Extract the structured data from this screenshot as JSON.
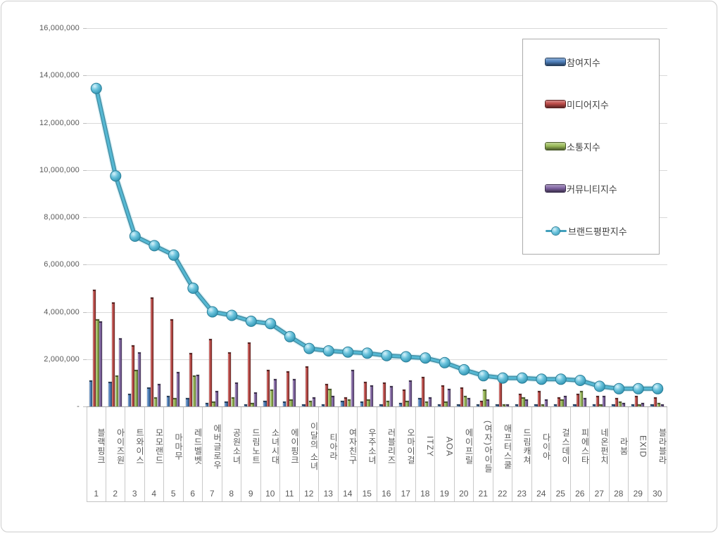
{
  "chart_data": {
    "type": "bar+line combo",
    "title": "",
    "xlabel": "",
    "ylabel": "",
    "ylim": [
      0,
      16000000
    ],
    "ytick_step": 2000000,
    "ytick_labels": [
      "-",
      "2,000,000",
      "4,000,000",
      "6,000,000",
      "8,000,000",
      "10,000,000",
      "12,000,000",
      "14,000,000",
      "16,000,000"
    ],
    "grid": true,
    "legend_position": "upper-right-overlay",
    "categories": [
      "블랙핑크",
      "아이즈원",
      "트와이스",
      "모모랜드",
      "마마무",
      "레드벨벳",
      "에버글로우",
      "공원소녀",
      "드림노트",
      "소녀시대",
      "에이핑크",
      "이달의 소녀",
      "티아라",
      "여자친구",
      "우주소녀",
      "러블리즈",
      "오마이걸",
      "ITZY",
      "AOA",
      "에이프릴",
      "(여자)아이들",
      "애프터스쿨",
      "드림캐쳐",
      "다이아",
      "걸스데이",
      "피에스타",
      "네온펀치",
      "라붐",
      "EXID",
      "블라블라"
    ],
    "ranks": [
      "1",
      "2",
      "3",
      "4",
      "5",
      "6",
      "7",
      "8",
      "9",
      "10",
      "11",
      "12",
      "13",
      "14",
      "15",
      "16",
      "17",
      "18",
      "19",
      "20",
      "21",
      "22",
      "23",
      "24",
      "25",
      "26",
      "27",
      "28",
      "29",
      "30"
    ],
    "series": [
      {
        "name": "참여지수",
        "type": "bar",
        "color": "#4F81BD",
        "values": [
          1100000,
          1050000,
          550000,
          800000,
          450000,
          350000,
          150000,
          200000,
          100000,
          250000,
          200000,
          100000,
          100000,
          250000,
          200000,
          100000,
          150000,
          350000,
          100000,
          100000,
          100000,
          50000,
          100000,
          50000,
          50000,
          50000,
          50000,
          50000,
          50000,
          50000
        ]
      },
      {
        "name": "미디어지수",
        "type": "bar",
        "color": "#BE4B48",
        "values": [
          4950000,
          4400000,
          2600000,
          4600000,
          3700000,
          2250000,
          2850000,
          2300000,
          2700000,
          1550000,
          1500000,
          1700000,
          950000,
          400000,
          1050000,
          1000000,
          700000,
          1250000,
          900000,
          800000,
          250000,
          1250000,
          550000,
          650000,
          400000,
          550000,
          450000,
          350000,
          450000,
          400000
        ]
      },
      {
        "name": "소통지수",
        "type": "bar",
        "color": "#9BBB59",
        "values": [
          3700000,
          1300000,
          1550000,
          400000,
          350000,
          1300000,
          200000,
          400000,
          150000,
          700000,
          300000,
          250000,
          750000,
          300000,
          300000,
          250000,
          250000,
          200000,
          200000,
          450000,
          700000,
          100000,
          400000,
          100000,
          300000,
          650000,
          100000,
          200000,
          100000,
          150000
        ]
      },
      {
        "name": "커뮤니티지수",
        "type": "bar",
        "color": "#8064A2",
        "values": [
          3600000,
          2900000,
          2300000,
          950000,
          1450000,
          1350000,
          650000,
          1000000,
          600000,
          1150000,
          1150000,
          400000,
          450000,
          1550000,
          900000,
          850000,
          1100000,
          400000,
          750000,
          350000,
          300000,
          100000,
          300000,
          300000,
          450000,
          350000,
          450000,
          150000,
          150000,
          100000
        ]
      },
      {
        "name": "브랜드평판지수",
        "type": "line",
        "color": "#4BACC6",
        "values": [
          13450000,
          9750000,
          7200000,
          6800000,
          6400000,
          5000000,
          4000000,
          3850000,
          3600000,
          3500000,
          2950000,
          2450000,
          2350000,
          2300000,
          2250000,
          2150000,
          2100000,
          2050000,
          1850000,
          1550000,
          1300000,
          1200000,
          1200000,
          1150000,
          1150000,
          1100000,
          850000,
          750000,
          750000,
          750000
        ]
      }
    ]
  },
  "legend": {
    "items": [
      "참여지수",
      "미디어지수",
      "소통지수",
      "커뮤니티지수",
      "브랜드평판지수"
    ]
  }
}
